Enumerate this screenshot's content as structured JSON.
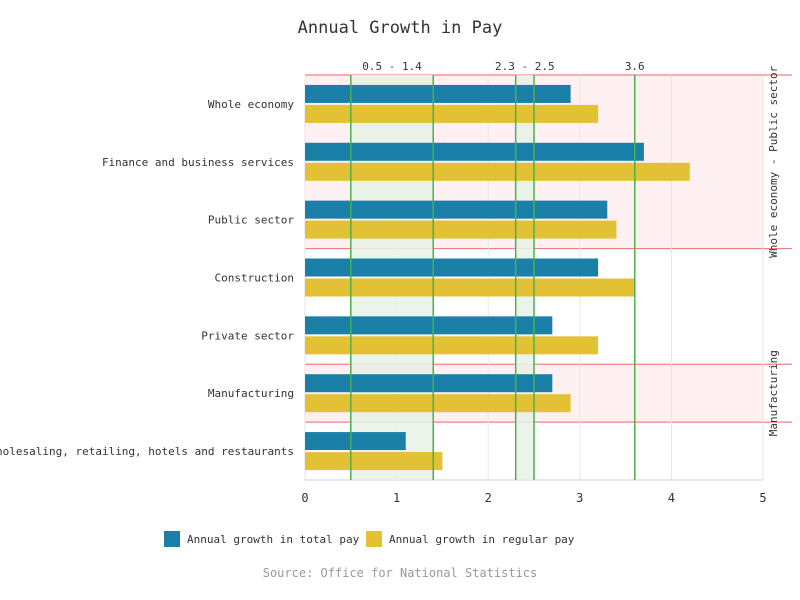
{
  "chart_data": {
    "type": "bar",
    "orientation": "horizontal",
    "title": "Annual Growth in Pay",
    "categories": [
      "Whole economy",
      "Finance and business services",
      "Public sector",
      "Construction",
      "Private sector",
      "Manufacturing",
      "Wholesaling, retailing, hotels and restaurants"
    ],
    "series": [
      {
        "name": "Annual growth in total pay",
        "color": "#1a80a8",
        "values": [
          2.9,
          3.7,
          3.3,
          3.2,
          2.7,
          2.7,
          1.1
        ]
      },
      {
        "name": "Annual growth in regular pay",
        "color": "#e2c135",
        "values": [
          3.2,
          4.2,
          3.4,
          3.6,
          3.2,
          2.9,
          1.5
        ]
      }
    ],
    "xlim": [
      0,
      5
    ],
    "xticks": [
      0,
      1,
      2,
      3,
      4,
      5
    ],
    "grid": true,
    "legend_position": "bottom",
    "value_bands": [
      {
        "label": "0.5 - 1.4",
        "from": 0.5,
        "to": 1.4,
        "color": "#e6f2e6",
        "line_color": "#4caf50"
      },
      {
        "label": "2.3 - 2.5",
        "from": 2.3,
        "to": 2.5,
        "color": "#e6f2e6",
        "line_color": "#4caf50"
      }
    ],
    "value_lines": [
      {
        "label": "3.6",
        "value": 3.6,
        "color": "#4caf50"
      }
    ],
    "category_bands": [
      {
        "label": "Whole economy - Public sector",
        "from_index": 0,
        "to_index": 2,
        "color": "#fff0f2",
        "border_color": "#f08080"
      },
      {
        "label": "Manufacturing",
        "from_index": 5,
        "to_index": 5,
        "color": "#fff0f2",
        "border_color": "#f08080"
      }
    ],
    "source": "Source: Office for National Statistics"
  }
}
